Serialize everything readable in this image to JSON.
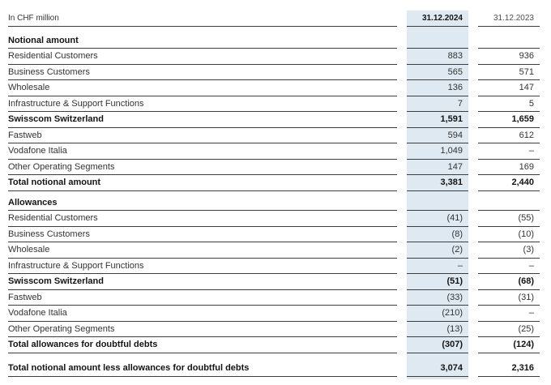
{
  "table": {
    "unit_label": "In CHF million",
    "columns": [
      "31.12.2024",
      "31.12.2023"
    ],
    "highlight_color": "#dfe9f1",
    "border_color": "#3d3d3d",
    "sections": [
      {
        "title": "Notional amount",
        "rows": [
          {
            "label": "Residential Customers",
            "v2024": "883",
            "v2023": "936",
            "bold": false
          },
          {
            "label": "Business Customers",
            "v2024": "565",
            "v2023": "571",
            "bold": false
          },
          {
            "label": "Wholesale",
            "v2024": "136",
            "v2023": "147",
            "bold": false
          },
          {
            "label": "Infrastructure & Support Functions",
            "v2024": "7",
            "v2023": "5",
            "bold": false
          },
          {
            "label": "Swisscom Switzerland",
            "v2024": "1,591",
            "v2023": "1,659",
            "bold": true
          },
          {
            "label": "Fastweb",
            "v2024": "594",
            "v2023": "612",
            "bold": false
          },
          {
            "label": "Vodafone Italia",
            "v2024": "1,049",
            "v2023": "–",
            "bold": false
          },
          {
            "label": "Other Operating Segments",
            "v2024": "147",
            "v2023": "169",
            "bold": false
          },
          {
            "label": "Total notional amount",
            "v2024": "3,381",
            "v2023": "2,440",
            "bold": true
          }
        ]
      },
      {
        "title": "Allowances",
        "rows": [
          {
            "label": "Residential Customers",
            "v2024": "(41)",
            "v2023": "(55)",
            "bold": false
          },
          {
            "label": "Business Customers",
            "v2024": "(8)",
            "v2023": "(10)",
            "bold": false
          },
          {
            "label": "Wholesale",
            "v2024": "(2)",
            "v2023": "(3)",
            "bold": false
          },
          {
            "label": "Infrastructure & Support Functions",
            "v2024": "–",
            "v2023": "–",
            "bold": false
          },
          {
            "label": "Swisscom Switzerland",
            "v2024": "(51)",
            "v2023": "(68)",
            "bold": true
          },
          {
            "label": "Fastweb",
            "v2024": "(33)",
            "v2023": "(31)",
            "bold": false
          },
          {
            "label": "Vodafone Italia",
            "v2024": "(210)",
            "v2023": "–",
            "bold": false
          },
          {
            "label": "Other Operating Segments",
            "v2024": "(13)",
            "v2023": "(25)",
            "bold": false
          },
          {
            "label": "Total allowances for doubtful debts",
            "v2024": "(307)",
            "v2023": "(124)",
            "bold": true
          }
        ]
      }
    ],
    "grand_total": {
      "label": "Total notional amount less allowances for doubtful debts",
      "v2024": "3,074",
      "v2023": "2,316",
      "bold": true
    }
  }
}
